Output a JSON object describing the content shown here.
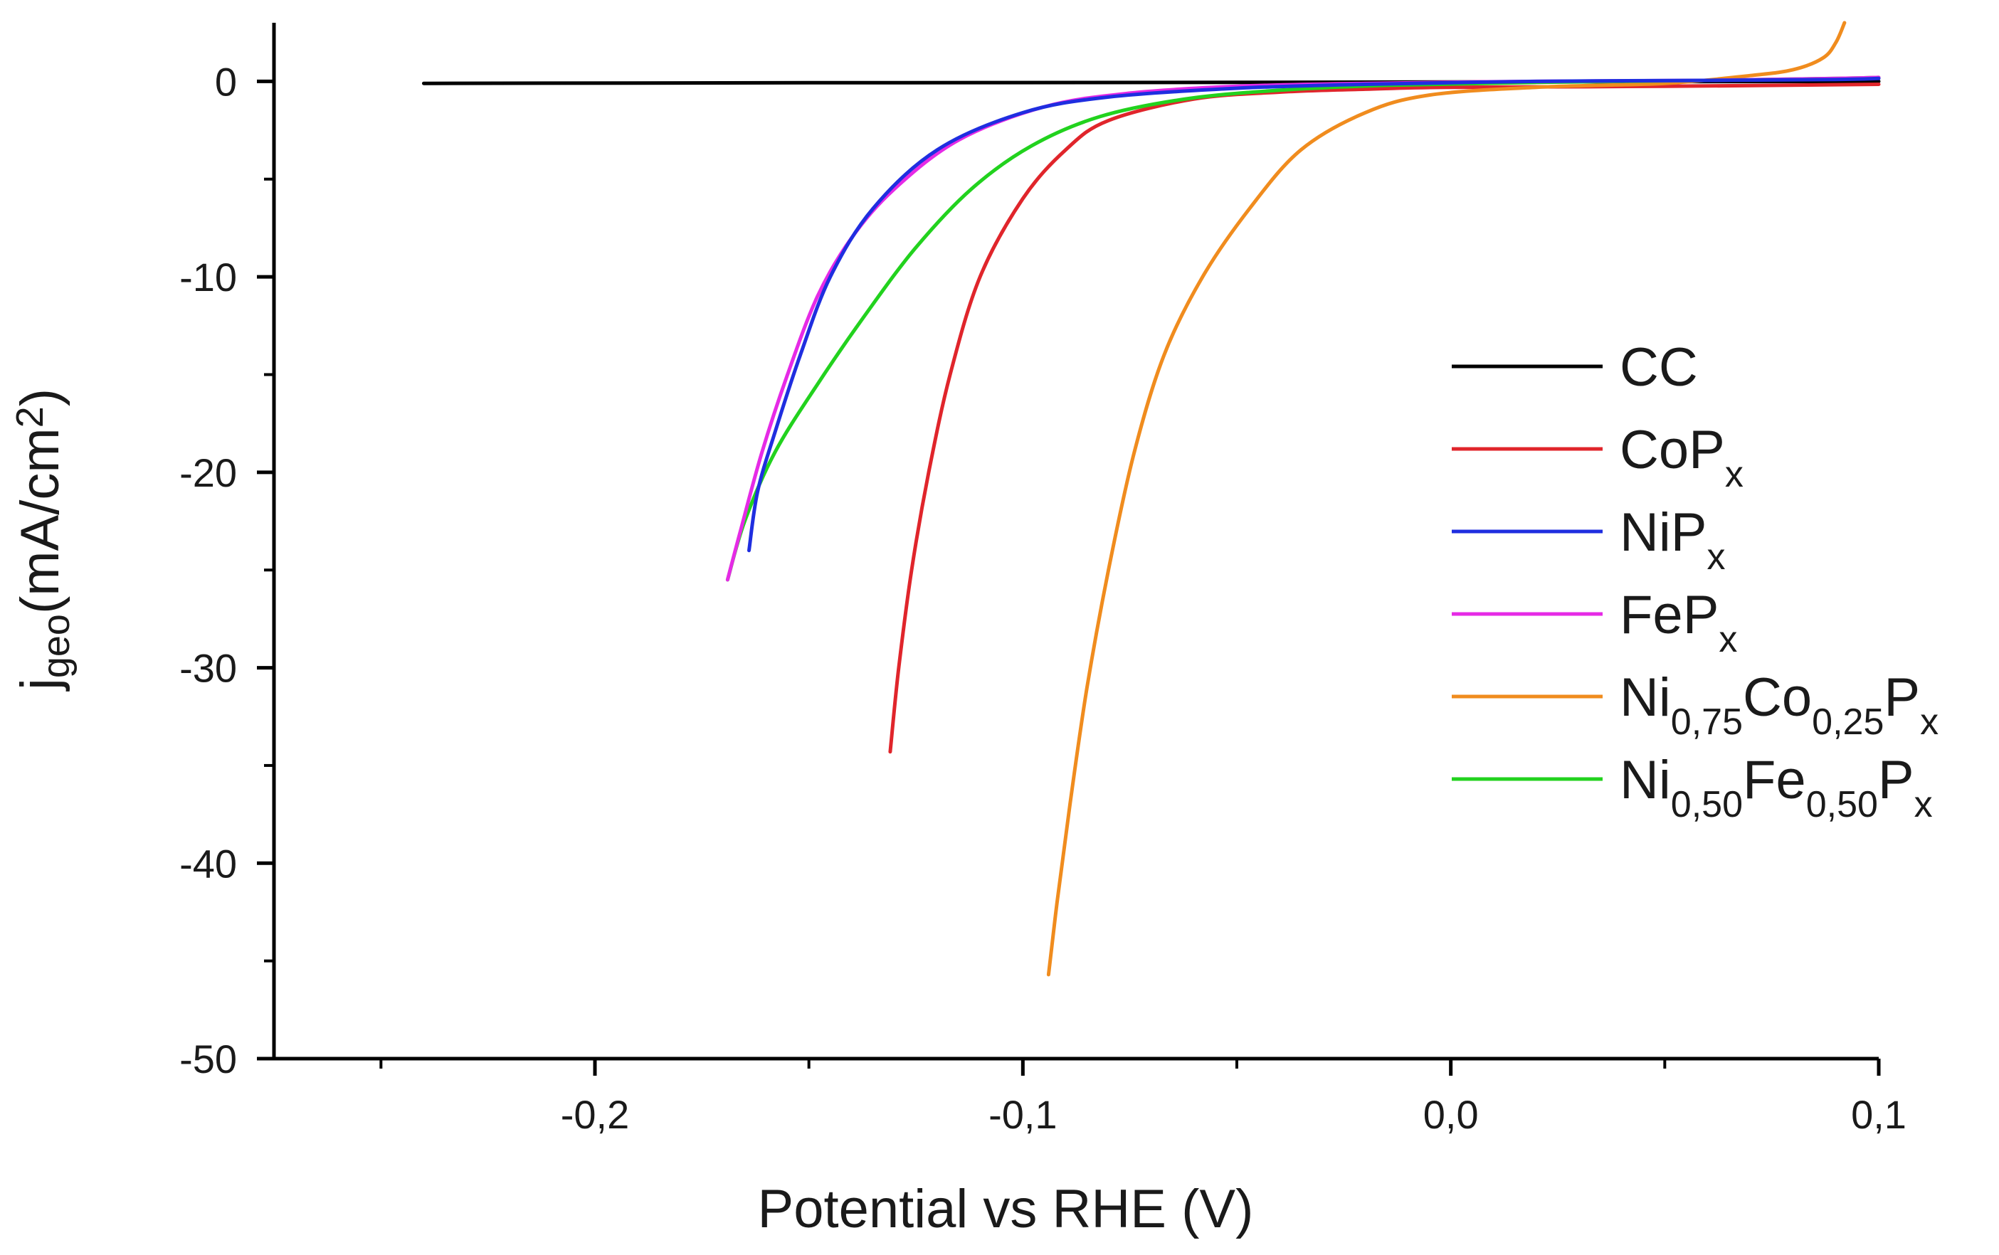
{
  "chart_data": {
    "type": "line",
    "title": "",
    "xlabel": "Potential vs RHE (V)",
    "ylabel": {
      "main": "j",
      "sub": "geo",
      "unit": "(mA/cm",
      "sup": "2",
      "close": ")"
    },
    "xlim": [
      -0.275,
      0.1
    ],
    "ylim": [
      -50,
      3
    ],
    "grid": false,
    "legend_position": "right",
    "x_ticks": [
      {
        "value": -0.2,
        "label": "-0,2"
      },
      {
        "value": -0.1,
        "label": "-0,1"
      },
      {
        "value": 0.0,
        "label": "0,0"
      },
      {
        "value": 0.1,
        "label": "0,1"
      }
    ],
    "x_minor_ticks": [
      -0.25,
      -0.15,
      -0.05,
      0.05
    ],
    "y_ticks": [
      {
        "value": 0,
        "label": "0"
      },
      {
        "value": -10,
        "label": "-10"
      },
      {
        "value": -20,
        "label": "-20"
      },
      {
        "value": -30,
        "label": "-30"
      },
      {
        "value": -40,
        "label": "-40"
      },
      {
        "value": -50,
        "label": "-50"
      }
    ],
    "y_minor_ticks": [
      -5,
      -15,
      -25,
      -35,
      -45
    ],
    "series": [
      {
        "name": "CC",
        "color": "#000000",
        "legend": [
          {
            "t": "CC",
            "s": ""
          }
        ],
        "points": [
          [
            -0.24,
            -0.1
          ],
          [
            -0.15,
            -0.07
          ],
          [
            -0.05,
            -0.05
          ],
          [
            0.0,
            -0.03
          ],
          [
            0.05,
            -0.01
          ],
          [
            0.1,
            0.0
          ]
        ]
      },
      {
        "name": "CoPx",
        "color": "#e0252b",
        "legend": [
          {
            "t": "CoP",
            "s": ""
          },
          {
            "t": "x",
            "s": "sub"
          }
        ],
        "points": [
          [
            -0.131,
            -34.3
          ],
          [
            -0.129,
            -30.0
          ],
          [
            -0.126,
            -25.0
          ],
          [
            -0.122,
            -20.0
          ],
          [
            -0.117,
            -15.0
          ],
          [
            -0.11,
            -10.0
          ],
          [
            -0.1,
            -6.0
          ],
          [
            -0.09,
            -3.5
          ],
          [
            -0.08,
            -2.0
          ],
          [
            -0.06,
            -0.9
          ],
          [
            -0.04,
            -0.55
          ],
          [
            -0.02,
            -0.4
          ],
          [
            0.0,
            -0.3
          ],
          [
            0.05,
            -0.25
          ],
          [
            0.1,
            -0.15
          ]
        ]
      },
      {
        "name": "NiPx",
        "color": "#1f2ee0",
        "legend": [
          {
            "t": "NiP",
            "s": ""
          },
          {
            "t": "x",
            "s": "sub"
          }
        ],
        "points": [
          [
            -0.164,
            -24.0
          ],
          [
            -0.162,
            -21.0
          ],
          [
            -0.158,
            -18.0
          ],
          [
            -0.152,
            -14.0
          ],
          [
            -0.145,
            -10.0
          ],
          [
            -0.135,
            -6.5
          ],
          [
            -0.12,
            -3.5
          ],
          [
            -0.1,
            -1.6
          ],
          [
            -0.08,
            -0.8
          ],
          [
            -0.05,
            -0.35
          ],
          [
            -0.02,
            -0.15
          ],
          [
            0.02,
            0.0
          ],
          [
            0.06,
            0.05
          ],
          [
            0.09,
            0.1
          ],
          [
            0.1,
            0.15
          ]
        ]
      },
      {
        "name": "FePx",
        "color": "#e62ae6",
        "legend": [
          {
            "t": "FeP",
            "s": ""
          },
          {
            "t": "x",
            "s": "sub"
          }
        ],
        "points": [
          [
            -0.169,
            -25.5
          ],
          [
            -0.166,
            -23.0
          ],
          [
            -0.161,
            -19.0
          ],
          [
            -0.155,
            -15.0
          ],
          [
            -0.148,
            -11.0
          ],
          [
            -0.14,
            -8.0
          ],
          [
            -0.13,
            -5.5
          ],
          [
            -0.115,
            -3.0
          ],
          [
            -0.095,
            -1.3
          ],
          [
            -0.075,
            -0.6
          ],
          [
            -0.05,
            -0.25
          ],
          [
            -0.02,
            -0.1
          ],
          [
            0.02,
            0.0
          ],
          [
            0.06,
            0.05
          ],
          [
            0.09,
            0.15
          ],
          [
            0.1,
            0.2
          ]
        ]
      },
      {
        "name": "Ni0,75Co0,25Px",
        "color": "#f08c1e",
        "legend": [
          {
            "t": "Ni",
            "s": ""
          },
          {
            "t": "0,75",
            "s": "sub"
          },
          {
            "t": "Co",
            "s": ""
          },
          {
            "t": "0,25",
            "s": "sub"
          },
          {
            "t": "P",
            "s": ""
          },
          {
            "t": "x",
            "s": "sub"
          }
        ],
        "points": [
          [
            -0.094,
            -45.7
          ],
          [
            -0.092,
            -42.0
          ],
          [
            -0.089,
            -37.0
          ],
          [
            -0.085,
            -31.0
          ],
          [
            -0.08,
            -25.0
          ],
          [
            -0.074,
            -19.0
          ],
          [
            -0.067,
            -14.0
          ],
          [
            -0.058,
            -10.0
          ],
          [
            -0.047,
            -6.5
          ],
          [
            -0.035,
            -3.5
          ],
          [
            -0.02,
            -1.6
          ],
          [
            -0.005,
            -0.7
          ],
          [
            0.02,
            -0.3
          ],
          [
            0.05,
            -0.1
          ],
          [
            0.07,
            0.3
          ],
          [
            0.08,
            0.6
          ],
          [
            0.087,
            1.2
          ],
          [
            0.09,
            2.0
          ],
          [
            0.092,
            3.0
          ]
        ]
      },
      {
        "name": "Ni0,50Fe0,50Px",
        "color": "#22d21e",
        "legend": [
          {
            "t": "Ni",
            "s": ""
          },
          {
            "t": "0,50",
            "s": "sub"
          },
          {
            "t": "Fe",
            "s": ""
          },
          {
            "t": "0,50",
            "s": "sub"
          },
          {
            "t": "P",
            "s": ""
          },
          {
            "t": "x",
            "s": "sub"
          }
        ],
        "points": [
          [
            -0.169,
            -25.5
          ],
          [
            -0.165,
            -22.5
          ],
          [
            -0.158,
            -19.0
          ],
          [
            -0.148,
            -15.5
          ],
          [
            -0.137,
            -12.0
          ],
          [
            -0.125,
            -8.5
          ],
          [
            -0.112,
            -5.5
          ],
          [
            -0.098,
            -3.3
          ],
          [
            -0.082,
            -1.8
          ],
          [
            -0.062,
            -0.9
          ],
          [
            -0.04,
            -0.45
          ],
          [
            -0.015,
            -0.2
          ],
          [
            0.02,
            -0.05
          ],
          [
            0.06,
            0.05
          ],
          [
            0.09,
            0.15
          ],
          [
            0.1,
            0.2
          ]
        ]
      }
    ]
  }
}
